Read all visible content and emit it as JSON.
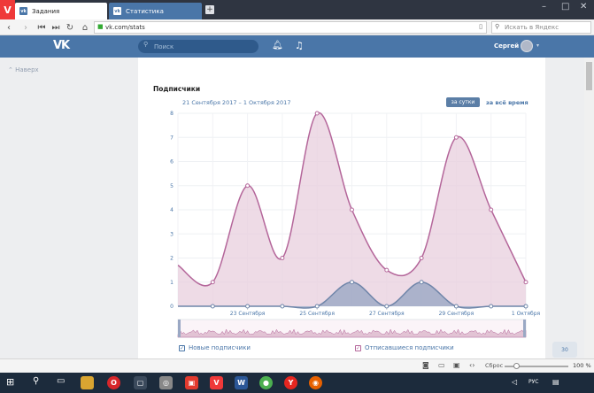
{
  "browser": {
    "tabs": [
      {
        "label": "Задания",
        "icon": "vk-icon"
      },
      {
        "label": "Статистика",
        "icon": "vk-icon"
      }
    ],
    "url": "vk.com/stats",
    "search_placeholder": "Искать в Яндекс"
  },
  "vk": {
    "logo": "VK",
    "search_placeholder": "Поиск",
    "user_name": "Сергей",
    "up_label": "Наверх"
  },
  "stats": {
    "section_title": "Подписчики",
    "date_range": "21 Сентября 2017 – 1 Октября 2017",
    "buttons": {
      "per_day": "за сутки",
      "all_time": "за всё время"
    },
    "legend": {
      "new": "Новые подписчики",
      "unsub": "Отписавшиеся подписчики"
    }
  },
  "status": {
    "reset": "Сброс",
    "zoom": "100 %"
  },
  "tray": {
    "lang": "РУС",
    "counter": "30"
  },
  "colors": {
    "pink_line": "#b4669a",
    "pink_fill": "#e8cfdd",
    "blue_line": "#6f85a9",
    "blue_fill": "#9aa8c4",
    "vk_blue": "#4a76a8"
  },
  "chart_data": {
    "type": "area",
    "title": "Подписчики",
    "ylim": [
      0,
      8
    ],
    "yticks": [
      "0",
      "1",
      "2",
      "3",
      "4",
      "5",
      "6",
      "7",
      "8"
    ],
    "xticks": [
      "23 Сентября",
      "25 Сентября",
      "27 Сентября",
      "29 Сентября",
      "1 Октября"
    ],
    "x": [
      "21.09",
      "22.09",
      "23.09",
      "24.09",
      "25.09",
      "26.09",
      "27.09",
      "28.09",
      "29.09",
      "30.09",
      "1.10"
    ],
    "series": [
      {
        "name": "Отписавшиеся подписчики",
        "values": [
          1.7,
          1,
          5,
          2,
          8,
          4,
          1.5,
          2,
          7,
          4,
          1
        ]
      },
      {
        "name": "Новые подписчики",
        "values": [
          0,
          0,
          0,
          0,
          0,
          1,
          0,
          1,
          0,
          0,
          0
        ]
      }
    ]
  }
}
